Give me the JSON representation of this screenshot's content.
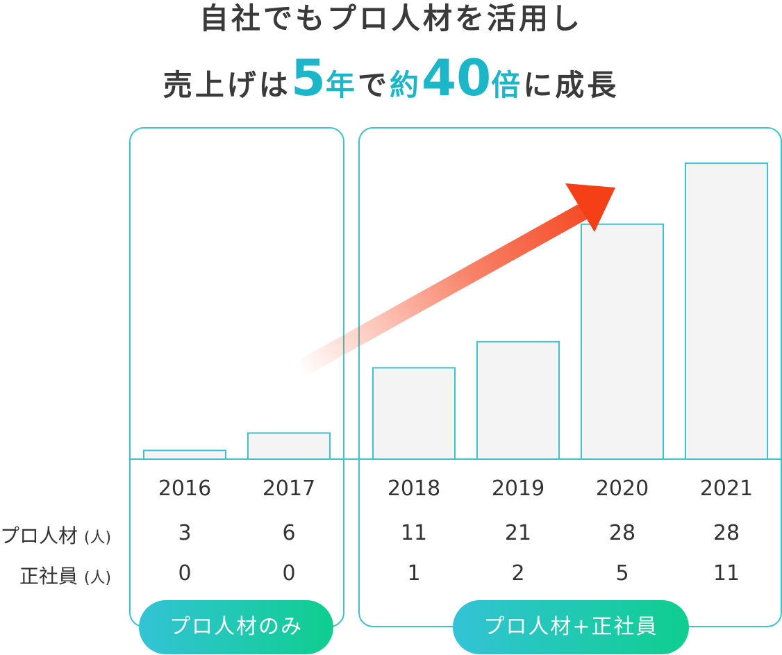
{
  "headline": {
    "line1": "自社でもプロ人材を活用し",
    "line2_a": "売上げは",
    "line2_num1": "5",
    "line2_b": "年",
    "line2_c": "で",
    "line2_d": "約",
    "line2_num2": "40",
    "line2_e": "倍",
    "line2_f": "に成長"
  },
  "row_labels": {
    "pro_talent": "プロ人材",
    "employees": "正社員",
    "unit": "(人)"
  },
  "groups": [
    {
      "label": "プロ人材のみ",
      "years": [
        "2016",
        "2017"
      ]
    },
    {
      "label": "プロ人材+正社員",
      "years": [
        "2018",
        "2019",
        "2020",
        "2021"
      ]
    }
  ],
  "colors": {
    "accent": "#1bb6c8",
    "bar_fill": "#f4f4f4",
    "bar_stroke": "#3cc3cf",
    "arrow_head": "#f43f17",
    "pill_start": "#33c3d6",
    "pill_end": "#0fce8e"
  },
  "chart_data": {
    "type": "bar",
    "categories": [
      "2016",
      "2017",
      "2018",
      "2019",
      "2020",
      "2021"
    ],
    "values": [
      1,
      3,
      10.5,
      13.5,
      27,
      34
    ],
    "ylim": [
      0,
      36
    ],
    "grid": false,
    "legend": "none",
    "y_axis_labels": "none",
    "trend_arrow": true,
    "table": {
      "pro_talent": [
        "3",
        "6",
        "11",
        "21",
        "28",
        "28"
      ],
      "employees": [
        "0",
        "0",
        "1",
        "2",
        "5",
        "11"
      ]
    }
  }
}
